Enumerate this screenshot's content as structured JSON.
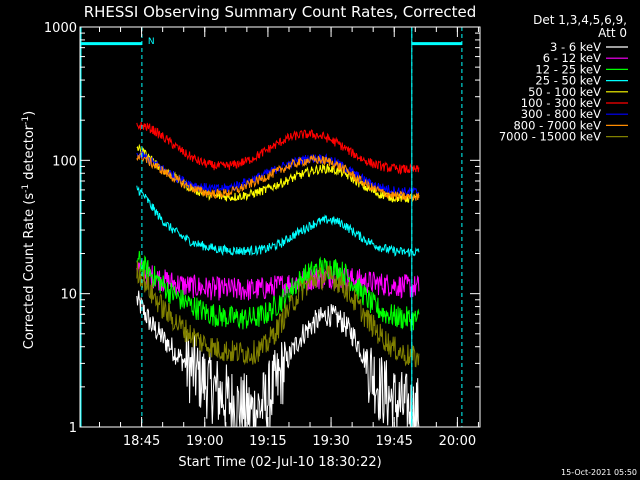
{
  "chart_data": {
    "type": "line",
    "title": "RHESSI Observing Summary Count Rates, Corrected",
    "xlabel": "Start Time (02-Jul-10 18:30:22)",
    "ylabel": "Corrected Count Rate (s",
    "ylabel_sup1": "-1",
    "ylabel_mid": " detector",
    "ylabel_sup2": "-1",
    "ylabel_end": ")",
    "y_scale": "log",
    "ylim": [
      1,
      1000
    ],
    "y_ticks": [
      {
        "value": 1,
        "label": "1"
      },
      {
        "value": 10,
        "label": "10"
      },
      {
        "value": 100,
        "label": "100"
      },
      {
        "value": 1000,
        "label": "1000"
      }
    ],
    "xlim_minutes": [
      0,
      95
    ],
    "x_ticks": [
      {
        "minute": 14.63,
        "label": "18:45"
      },
      {
        "minute": 29.63,
        "label": "19:00"
      },
      {
        "minute": 44.63,
        "label": "19:15"
      },
      {
        "minute": 59.63,
        "label": "19:30"
      },
      {
        "minute": 74.63,
        "label": "19:45"
      },
      {
        "minute": 89.63,
        "label": "20:00"
      }
    ],
    "legend_header": [
      "Det 1,3,4,5,6,9,",
      "Att 0"
    ],
    "series": [
      {
        "name": "3 - 6 keV",
        "color": "#ffffff",
        "minutes": [
          13.5,
          15,
          17,
          20,
          23,
          26,
          29,
          32,
          35,
          38,
          41,
          44,
          47,
          50,
          53,
          56,
          59,
          62,
          65,
          68,
          71,
          74,
          77,
          80
        ],
        "values": [
          9.0,
          7.5,
          5.8,
          4.5,
          3.5,
          2.8,
          2.3,
          1.9,
          1.6,
          1.4,
          1.3,
          1.5,
          2.2,
          3.5,
          5.0,
          6.2,
          7.0,
          6.3,
          4.8,
          3.0,
          2.0,
          1.6,
          1.4,
          1.3
        ]
      },
      {
        "name": "6 - 12 keV",
        "color": "#ff00ff",
        "minutes": [
          13.5,
          16,
          20,
          25,
          30,
          35,
          40,
          45,
          50,
          55,
          60,
          65,
          70,
          75,
          80
        ],
        "values": [
          16.0,
          14.0,
          12.5,
          11.5,
          11.0,
          10.8,
          10.7,
          11.0,
          12.0,
          13.0,
          13.5,
          12.8,
          12.0,
          11.5,
          11.2
        ]
      },
      {
        "name": "12 - 25 keV",
        "color": "#00ff00",
        "minutes": [
          13.5,
          15,
          18,
          21,
          24,
          27,
          30,
          33,
          36,
          39,
          42,
          45,
          48,
          51,
          54,
          57,
          60,
          63,
          66,
          69,
          72,
          75,
          78,
          80
        ],
        "values": [
          18.0,
          16.0,
          13.0,
          10.5,
          9.0,
          8.0,
          7.2,
          6.8,
          6.6,
          6.5,
          6.6,
          7.3,
          9.0,
          11.5,
          14.0,
          15.5,
          15.8,
          14.0,
          11.0,
          8.5,
          7.2,
          6.7,
          6.5,
          6.4
        ]
      },
      {
        "name": "25 - 50 keV",
        "color": "#00ffff",
        "minutes": [
          13.5,
          15,
          17,
          19,
          21,
          24,
          27,
          30,
          33,
          36,
          40,
          44,
          48,
          52,
          56,
          59,
          62,
          65,
          68,
          71,
          74,
          77,
          80
        ],
        "values": [
          62.0,
          55.0,
          45.0,
          37.0,
          32.0,
          27.0,
          24.0,
          22.5,
          21.5,
          21.0,
          21.0,
          21.5,
          24.0,
          29.0,
          34.0,
          36.0,
          34.0,
          29.0,
          25.0,
          22.5,
          21.0,
          20.5,
          20.5
        ]
      },
      {
        "name": "50 - 100 keV",
        "color": "#ffff00",
        "minutes": [
          13.5,
          15,
          17,
          20,
          23,
          26,
          29,
          32,
          36,
          40,
          44,
          48,
          52,
          56,
          59,
          62,
          65,
          68,
          71,
          74,
          77,
          80
        ],
        "values": [
          125.0,
          115.0,
          100.0,
          84.0,
          72.0,
          63.0,
          57.0,
          54.0,
          53.0,
          55.0,
          60.0,
          68.0,
          77.0,
          85.0,
          87.0,
          82.0,
          72.0,
          62.0,
          56.0,
          53.0,
          52.0,
          52.0
        ]
      },
      {
        "name": "100 - 300 keV",
        "color": "#ff0000",
        "minutes": [
          13.5,
          15,
          17,
          19,
          22,
          25,
          28,
          31,
          34,
          37,
          40,
          43,
          46,
          49,
          52,
          55,
          58,
          61,
          64,
          67,
          70,
          73,
          76,
          80
        ],
        "values": [
          180.0,
          182.0,
          172.0,
          155.0,
          132.0,
          112.0,
          99.0,
          92.0,
          90.0,
          93.0,
          100.0,
          112.0,
          128.0,
          145.0,
          155.0,
          157.0,
          150.0,
          135.0,
          117.0,
          102.0,
          93.0,
          88.0,
          86.0,
          85.0
        ]
      },
      {
        "name": "300 - 800 keV",
        "color": "#0000ff",
        "minutes": [
          13.5,
          15,
          17,
          20,
          23,
          26,
          29,
          32,
          35,
          38,
          42,
          46,
          50,
          54,
          57,
          60,
          63,
          66,
          69,
          72,
          75,
          78,
          80
        ],
        "values": [
          110.0,
          108.0,
          98.0,
          85.0,
          74.0,
          67.0,
          63.0,
          61.0,
          62.0,
          66.0,
          74.0,
          84.0,
          95.0,
          103.0,
          104.0,
          99.0,
          88.0,
          76.0,
          67.0,
          62.0,
          59.0,
          58.0,
          58.0
        ]
      },
      {
        "name": "800 - 7000 keV",
        "color": "#ff8c00",
        "minutes": [
          13.5,
          15,
          17,
          20,
          23,
          26,
          29,
          32,
          35,
          38,
          42,
          46,
          50,
          54,
          57,
          60,
          63,
          66,
          69,
          72,
          75,
          78,
          80
        ],
        "values": [
          108.0,
          105.0,
          95.0,
          82.0,
          71.0,
          63.0,
          58.0,
          56.0,
          57.0,
          61.0,
          70.0,
          80.0,
          92.0,
          100.0,
          101.0,
          96.0,
          85.0,
          72.0,
          63.0,
          57.0,
          54.0,
          53.0,
          53.0
        ]
      },
      {
        "name": "7000 - 15000 keV",
        "color": "#808000",
        "minutes": [
          13.5,
          15,
          17,
          20,
          23,
          26,
          29,
          32,
          35,
          38,
          41,
          44,
          47,
          50,
          53,
          56,
          59,
          62,
          65,
          68,
          71,
          74,
          77,
          80
        ],
        "values": [
          15.0,
          13.0,
          10.0,
          7.5,
          6.0,
          5.0,
          4.3,
          3.9,
          3.7,
          3.6,
          3.6,
          4.0,
          5.5,
          8.0,
          11.0,
          13.0,
          13.5,
          12.0,
          9.0,
          6.5,
          5.0,
          4.0,
          3.5,
          3.3
        ]
      }
    ],
    "night_markers": [
      {
        "minute": 14.7,
        "label": "N"
      },
      {
        "minute": 78.8,
        "label": ""
      },
      {
        "minute": 90.7,
        "label": ""
      }
    ],
    "attenuator_level": 750,
    "data_gap_minutes": [
      13.5,
      80.5
    ]
  },
  "timestamp": "15-Oct-2021 05:50"
}
